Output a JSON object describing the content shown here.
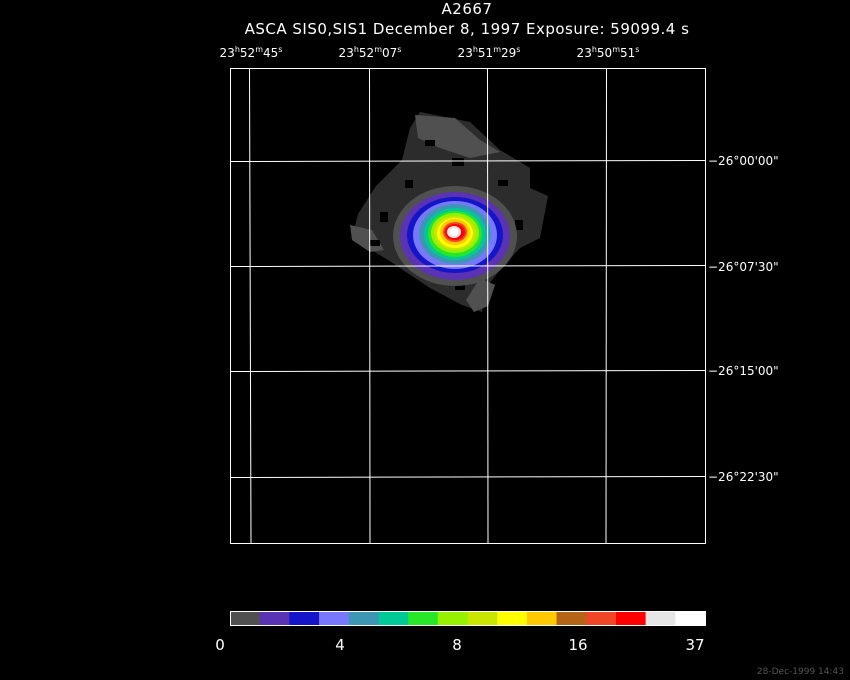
{
  "title": "A2667",
  "subtitle": "ASCA SIS0,SIS1 December 8, 1997 Exposure: 59099.4 s",
  "ra_labels": [
    {
      "h": "23",
      "m": "52",
      "s": "45"
    },
    {
      "h": "23",
      "m": "52",
      "s": "07"
    },
    {
      "h": "23",
      "m": "51",
      "s": "29"
    },
    {
      "h": "23",
      "m": "50",
      "s": "51"
    }
  ],
  "dec_labels": [
    "−26°00'00\"",
    "−26°07'30\"",
    "−26°15'00\"",
    "−26°22'30\""
  ],
  "colorbar": {
    "colors": [
      "#505050",
      "#5a32b4",
      "#1414c8",
      "#7878ff",
      "#3c96b4",
      "#00c896",
      "#28e628",
      "#96f000",
      "#c8e600",
      "#ffff00",
      "#ffc800",
      "#b46414",
      "#f04628",
      "#ff0000",
      "#e6e6e6",
      "#ffffff"
    ],
    "tick_labels": [
      "0",
      "4",
      "8",
      "16",
      "37"
    ]
  },
  "timestamp": "28-Dec-1999 14:43"
}
